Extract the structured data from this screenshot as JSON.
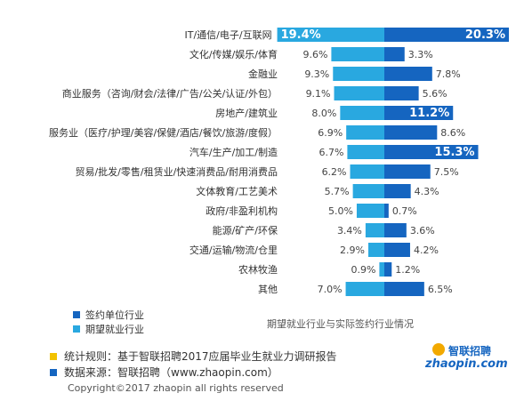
{
  "chart_data": {
    "type": "bar",
    "orientation": "horizontal-diverging",
    "title": "",
    "subtitle": "期望就业行业与实际签约行业情况",
    "categories": [
      "IT/通信/电子/互联网",
      "文化/传媒/娱乐/体育",
      "金融业",
      "商业服务（咨询/财会/法律/广告/公关/认证/外包）",
      "房地产/建筑业",
      "服务业（医疗/护理/美容/保健/酒店/餐饮/旅游/度假）",
      "汽车/生产/加工/制造",
      "贸易/批发/零售/租赁业/快速消费品/耐用消费品",
      "文体教育/工艺美术",
      "政府/非盈利机构",
      "能源/矿产/环保",
      "交通/运输/物流/仓里",
      "农林牧渔",
      "其他"
    ],
    "series": [
      {
        "name": "期望就业行业",
        "direction": "left",
        "color": "#29a8e0",
        "values": [
          19.4,
          9.6,
          9.3,
          9.1,
          8.0,
          6.9,
          6.7,
          6.2,
          5.7,
          5.0,
          3.4,
          2.9,
          0.9,
          7.0
        ],
        "labels": [
          "19.4%",
          "9.6%",
          "9.3%",
          "9.1%",
          "8.0%",
          "6.9%",
          "6.7%",
          "6.2%",
          "5.7%",
          "5.0%",
          "3.4%",
          "2.9%",
          "0.9%",
          "7.0%"
        ]
      },
      {
        "name": "签约单位行业",
        "direction": "right",
        "color": "#1565c0",
        "values": [
          20.3,
          3.3,
          7.8,
          5.6,
          11.2,
          8.6,
          15.3,
          7.5,
          4.3,
          0.7,
          3.6,
          4.2,
          1.2,
          6.5
        ],
        "labels": [
          "20.3%",
          "3.3%",
          "7.8%",
          "5.6%",
          "11.2%",
          "8.6%",
          "15.3%",
          "7.5%",
          "4.3%",
          "0.7%",
          "3.6%",
          "4.2%",
          "1.2%",
          "6.5%"
        ]
      }
    ],
    "xlim": [
      0,
      20.3
    ],
    "grid": false,
    "legend_position": "bottom-left"
  },
  "legend": {
    "items": [
      {
        "label": "签约单位行业",
        "color": "#1565c0"
      },
      {
        "label": "期望就业行业",
        "color": "#29a8e0"
      }
    ]
  },
  "notes": {
    "stat_rule": "统计规则：基于智联招聘2017应届毕业生就业力调研报告",
    "stat_rule_color": "#f2c200",
    "source": "数据来源：智联招聘（www.zhaopin.com）",
    "source_color": "#1565c0"
  },
  "logo": {
    "cn": "智联招聘",
    "en": "zhaopin.com"
  },
  "copyright": "Copyright©2017 zhaopin all rights reserved"
}
